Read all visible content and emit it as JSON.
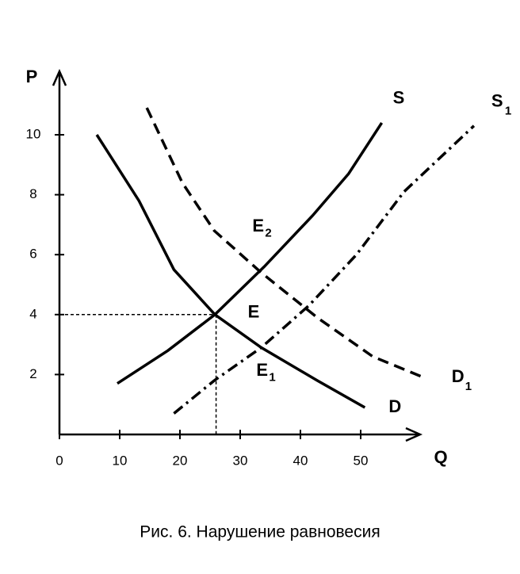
{
  "chart_data": {
    "type": "line",
    "caption": "Рис. 6. Нарушение равновесия",
    "x_label": "Q",
    "y_label": "P",
    "xlim": [
      0,
      60
    ],
    "ylim": [
      0,
      12
    ],
    "xticks": [
      0,
      10,
      20,
      30,
      40,
      50
    ],
    "yticks": [
      2,
      4,
      6,
      8,
      10
    ],
    "series": [
      {
        "name": "S",
        "subscript": null,
        "color": "#000000",
        "dash": "solid",
        "x": [
          9.6,
          18,
          25.8,
          34,
          42,
          48,
          53.5
        ],
        "values": [
          1.7,
          2.8,
          4,
          5.6,
          7.3,
          8.7,
          10.4
        ]
      },
      {
        "name": "S",
        "subscript": "1",
        "color": "#000000",
        "dash": "dashdot",
        "x": [
          19,
          25.7,
          33.5,
          41.4,
          49.3,
          57.2,
          68.8
        ],
        "values": [
          0.7,
          1.8,
          2.9,
          4.3,
          6,
          8.1,
          10.3
        ]
      },
      {
        "name": "D",
        "subscript": null,
        "color": "#000000",
        "dash": "solid",
        "x": [
          6.2,
          13.2,
          19,
          25.8,
          33.5,
          42.8,
          50.7
        ],
        "values": [
          10,
          7.8,
          5.5,
          4,
          2.9,
          1.8,
          0.9
        ]
      },
      {
        "name": "D",
        "subscript": "1",
        "color": "#000000",
        "dash": "dashed",
        "x": [
          14.5,
          20.4,
          25.7,
          33.5,
          42.8,
          52,
          60.5
        ],
        "values": [
          10.9,
          8.4,
          6.8,
          5.4,
          3.9,
          2.6,
          1.9
        ]
      }
    ],
    "points": [
      {
        "name": "E",
        "subscript": null,
        "x": 26,
        "y": 4,
        "guides": true
      },
      {
        "name": "E",
        "subscript": "2",
        "x": 34,
        "y": 5.6,
        "guides": false
      },
      {
        "name": "E",
        "subscript": "1",
        "x": 34,
        "y": 2.9,
        "guides": false
      }
    ]
  }
}
